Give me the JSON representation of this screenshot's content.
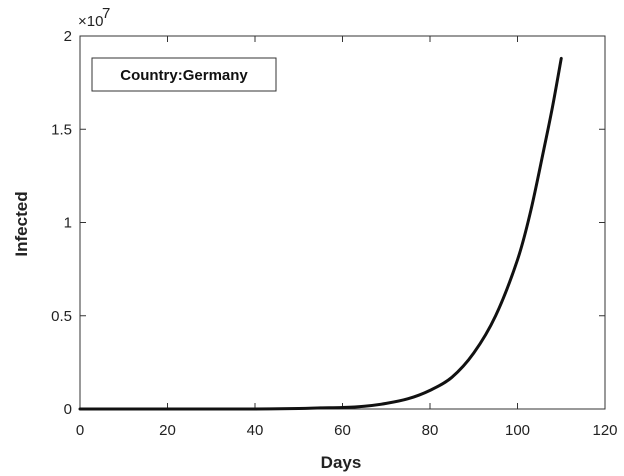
{
  "chart_data": {
    "type": "line",
    "xlabel": "Days",
    "ylabel": "Infected",
    "xlim": [
      0,
      120
    ],
    "ylim": [
      0,
      20000000
    ],
    "x_ticks": [
      0,
      20,
      40,
      60,
      80,
      100,
      120
    ],
    "x_tick_labels": [
      "0",
      "20",
      "40",
      "60",
      "80",
      "100",
      "120"
    ],
    "y_ticks": [
      0,
      5000000,
      10000000,
      15000000,
      20000000
    ],
    "y_tick_labels": [
      "0",
      "0.5",
      "1",
      "1.5",
      "2"
    ],
    "y_exponent": {
      "base": "×10",
      "power": "7"
    },
    "annotation": "Country:Germany",
    "grid": false,
    "series": [
      {
        "color": "#111111",
        "x": [
          0,
          10,
          20,
          30,
          40,
          50,
          55,
          60,
          65,
          70,
          75,
          80,
          85,
          90,
          95,
          100,
          103,
          106,
          108,
          110
        ],
        "y": [
          0,
          0,
          0,
          0,
          0,
          30000,
          60000,
          80000,
          150000,
          300000,
          550000,
          1000000,
          1700000,
          3000000,
          5000000,
          8000000,
          10600000,
          13900000,
          16200000,
          18800000
        ]
      }
    ]
  }
}
